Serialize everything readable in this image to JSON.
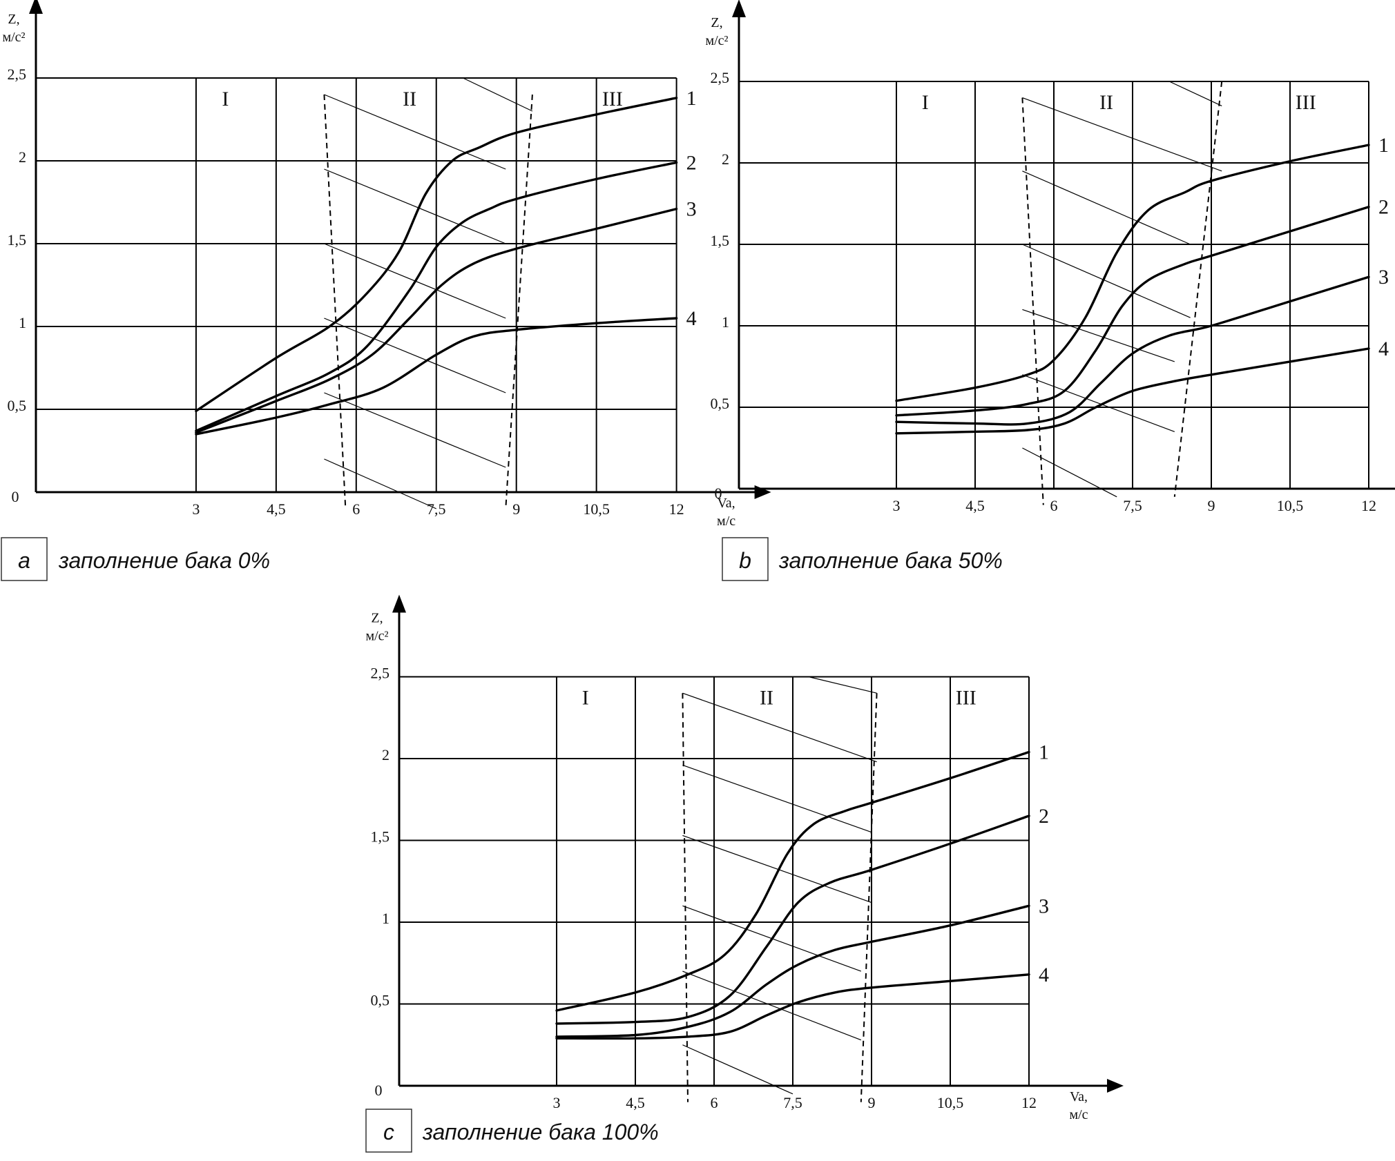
{
  "colors": {
    "ink": "#000000",
    "background": "#ffffff"
  },
  "chart_data": [
    {
      "type": "line",
      "panel": "a",
      "caption": "заполнение бака 0%",
      "xlabel": "Va,",
      "xunit": "м/с",
      "ylabel": "Z,",
      "yunit": "м/с²",
      "xlim": [
        0,
        13.2
      ],
      "ylim": [
        0,
        2.5
      ],
      "xticks": [
        3,
        4.5,
        6,
        7.5,
        9,
        10.5,
        12
      ],
      "xtick_labels": [
        "3",
        "4,5",
        "6",
        "7,5",
        "9",
        "10,5",
        "12"
      ],
      "yticks": [
        0.5,
        1,
        1.5,
        2,
        2.5
      ],
      "ytick_labels": [
        "0,5",
        "1",
        "1,5",
        "2",
        "2,5"
      ],
      "origin_label": "0",
      "grid": true,
      "regions": [
        "I",
        "II",
        "III"
      ],
      "boundary1": [
        [
          5.4,
          2.4
        ],
        [
          5.8,
          -0.1
        ]
      ],
      "boundary2": [
        [
          9.3,
          2.4
        ],
        [
          8.8,
          -0.1
        ]
      ],
      "hatch": [
        [
          5.4,
          2.4,
          8.8,
          1.95
        ],
        [
          5.4,
          1.95,
          8.8,
          1.5
        ],
        [
          5.4,
          1.5,
          8.8,
          1.05
        ],
        [
          5.4,
          1.05,
          8.8,
          0.6
        ],
        [
          5.4,
          0.6,
          8.8,
          0.15
        ],
        [
          5.4,
          0.2,
          7.5,
          -0.1
        ],
        [
          8,
          2.5,
          9.3,
          2.3
        ]
      ],
      "series": [
        {
          "name": "1",
          "x": [
            3,
            4.5,
            5.5,
            6.2,
            6.8,
            7.3,
            7.8,
            8.3,
            9,
            10.5,
            12
          ],
          "y": [
            0.49,
            0.81,
            1.0,
            1.2,
            1.45,
            1.8,
            2.0,
            2.08,
            2.17,
            2.28,
            2.38
          ]
        },
        {
          "name": "2",
          "x": [
            3,
            4.5,
            5.5,
            6.2,
            7,
            7.5,
            8,
            8.5,
            9,
            10.5,
            12
          ],
          "y": [
            0.37,
            0.58,
            0.72,
            0.88,
            1.22,
            1.48,
            1.63,
            1.71,
            1.77,
            1.89,
            1.99
          ]
        },
        {
          "name": "3",
          "x": [
            3,
            4.5,
            5.5,
            6.3,
            7,
            7.6,
            8.2,
            9,
            10.5,
            12
          ],
          "y": [
            0.36,
            0.55,
            0.68,
            0.83,
            1.05,
            1.25,
            1.38,
            1.47,
            1.59,
            1.71
          ]
        },
        {
          "name": "4",
          "x": [
            3,
            4.5,
            5.5,
            6.5,
            7.5,
            8.2,
            9,
            10.5,
            12
          ],
          "y": [
            0.35,
            0.45,
            0.53,
            0.63,
            0.83,
            0.94,
            0.98,
            1.02,
            1.05
          ]
        }
      ]
    },
    {
      "type": "line",
      "panel": "b",
      "caption": "заполнение бака 50%",
      "xlabel": "Va,",
      "xunit": "м/с",
      "ylabel": "Z,",
      "yunit": "м/с²",
      "xlim": [
        0,
        13.2
      ],
      "ylim": [
        0,
        2.5
      ],
      "xticks": [
        3,
        4.5,
        6,
        7.5,
        9,
        10.5,
        12
      ],
      "xtick_labels": [
        "3",
        "4,5",
        "6",
        "7,5",
        "9",
        "10,5",
        "12"
      ],
      "yticks": [
        0.5,
        1,
        1.5,
        2,
        2.5
      ],
      "ytick_labels": [
        "0,5",
        "1",
        "1,5",
        "2",
        "2,5"
      ],
      "origin_label": "0",
      "grid": true,
      "regions": [
        "I",
        "II",
        "III"
      ],
      "boundary1": [
        [
          5.4,
          2.4
        ],
        [
          5.8,
          -0.1
        ]
      ],
      "boundary2": [
        [
          9.2,
          2.5
        ],
        [
          8.3,
          -0.05
        ]
      ],
      "hatch": [
        [
          5.4,
          2.4,
          9.2,
          1.95
        ],
        [
          5.4,
          1.95,
          8.6,
          1.5
        ],
        [
          5.4,
          1.5,
          8.6,
          1.05
        ],
        [
          5.4,
          1.1,
          8.3,
          0.78
        ],
        [
          5.4,
          0.7,
          8.3,
          0.35
        ],
        [
          5.4,
          0.25,
          7.2,
          -0.05
        ],
        [
          8.2,
          2.5,
          9.2,
          2.35
        ]
      ],
      "series": [
        {
          "name": "1",
          "x": [
            3,
            4.5,
            5.5,
            6,
            6.6,
            7.2,
            7.8,
            8.5,
            9,
            10.5,
            12
          ],
          "y": [
            0.54,
            0.62,
            0.7,
            0.79,
            1.05,
            1.45,
            1.71,
            1.82,
            1.89,
            2.01,
            2.11
          ]
        },
        {
          "name": "2",
          "x": [
            3,
            4.5,
            5.5,
            6.2,
            6.8,
            7.3,
            7.8,
            8.5,
            9,
            10.5,
            12
          ],
          "y": [
            0.45,
            0.48,
            0.52,
            0.6,
            0.85,
            1.12,
            1.28,
            1.38,
            1.43,
            1.58,
            1.73
          ]
        },
        {
          "name": "3",
          "x": [
            3,
            4.5,
            5.5,
            6.3,
            6.9,
            7.5,
            8.2,
            9,
            10.5,
            12
          ],
          "y": [
            0.41,
            0.4,
            0.4,
            0.47,
            0.65,
            0.83,
            0.94,
            1.0,
            1.15,
            1.3
          ]
        },
        {
          "name": "4",
          "x": [
            3,
            4.5,
            5.5,
            6.2,
            6.8,
            7.5,
            8.3,
            9,
            10.5,
            12
          ],
          "y": [
            0.34,
            0.35,
            0.36,
            0.4,
            0.5,
            0.6,
            0.66,
            0.7,
            0.78,
            0.86
          ]
        }
      ]
    },
    {
      "type": "line",
      "panel": "c",
      "caption": "заполнение бака 100%",
      "xlabel": "Va,",
      "xunit": "м/с",
      "ylabel": "Z,",
      "yunit": "м/с²",
      "xlim": [
        0,
        13.2
      ],
      "ylim": [
        0,
        2.5
      ],
      "xticks": [
        3,
        4.5,
        6,
        7.5,
        9,
        10.5,
        12
      ],
      "xtick_labels": [
        "3",
        "4,5",
        "6",
        "7,5",
        "9",
        "10,5",
        "12"
      ],
      "yticks": [
        0.5,
        1,
        1.5,
        2,
        2.5
      ],
      "ytick_labels": [
        "0,5",
        "1",
        "1,5",
        "2",
        "2,5"
      ],
      "origin_label": "0",
      "grid": true,
      "regions": [
        "I",
        "II",
        "III"
      ],
      "boundary1": [
        [
          5.4,
          2.4
        ],
        [
          5.5,
          -0.1
        ]
      ],
      "boundary2": [
        [
          9.1,
          2.4
        ],
        [
          8.8,
          -0.1
        ]
      ],
      "hatch": [
        [
          5.4,
          2.4,
          9.1,
          1.98
        ],
        [
          5.4,
          1.96,
          9.0,
          1.55
        ],
        [
          5.4,
          1.53,
          9.0,
          1.12
        ],
        [
          5.4,
          1.1,
          8.8,
          0.7
        ],
        [
          5.4,
          0.7,
          8.8,
          0.28
        ],
        [
          5.4,
          0.25,
          7.5,
          -0.05
        ],
        [
          7.8,
          2.5,
          9.1,
          2.4
        ]
      ],
      "series": [
        {
          "name": "1",
          "x": [
            3,
            4.5,
            5.5,
            6.2,
            6.8,
            7.4,
            7.9,
            8.5,
            9,
            10.5,
            12
          ],
          "y": [
            0.46,
            0.57,
            0.68,
            0.8,
            1.05,
            1.42,
            1.6,
            1.68,
            1.73,
            1.88,
            2.04
          ]
        },
        {
          "name": "2",
          "x": [
            3,
            4.5,
            5.5,
            6.3,
            7,
            7.6,
            8.2,
            9,
            10.5,
            12
          ],
          "y": [
            0.38,
            0.39,
            0.42,
            0.55,
            0.85,
            1.12,
            1.24,
            1.32,
            1.48,
            1.65
          ]
        },
        {
          "name": "3",
          "x": [
            3,
            4.5,
            5.5,
            6.3,
            7,
            7.6,
            8.3,
            9,
            10.5,
            12
          ],
          "y": [
            0.3,
            0.31,
            0.36,
            0.45,
            0.62,
            0.74,
            0.83,
            0.88,
            0.98,
            1.1
          ]
        },
        {
          "name": "4",
          "x": [
            3,
            4.5,
            5.5,
            6.3,
            7,
            7.6,
            8.3,
            9,
            10.5,
            12
          ],
          "y": [
            0.29,
            0.29,
            0.3,
            0.33,
            0.43,
            0.51,
            0.57,
            0.6,
            0.64,
            0.68
          ]
        }
      ]
    }
  ]
}
